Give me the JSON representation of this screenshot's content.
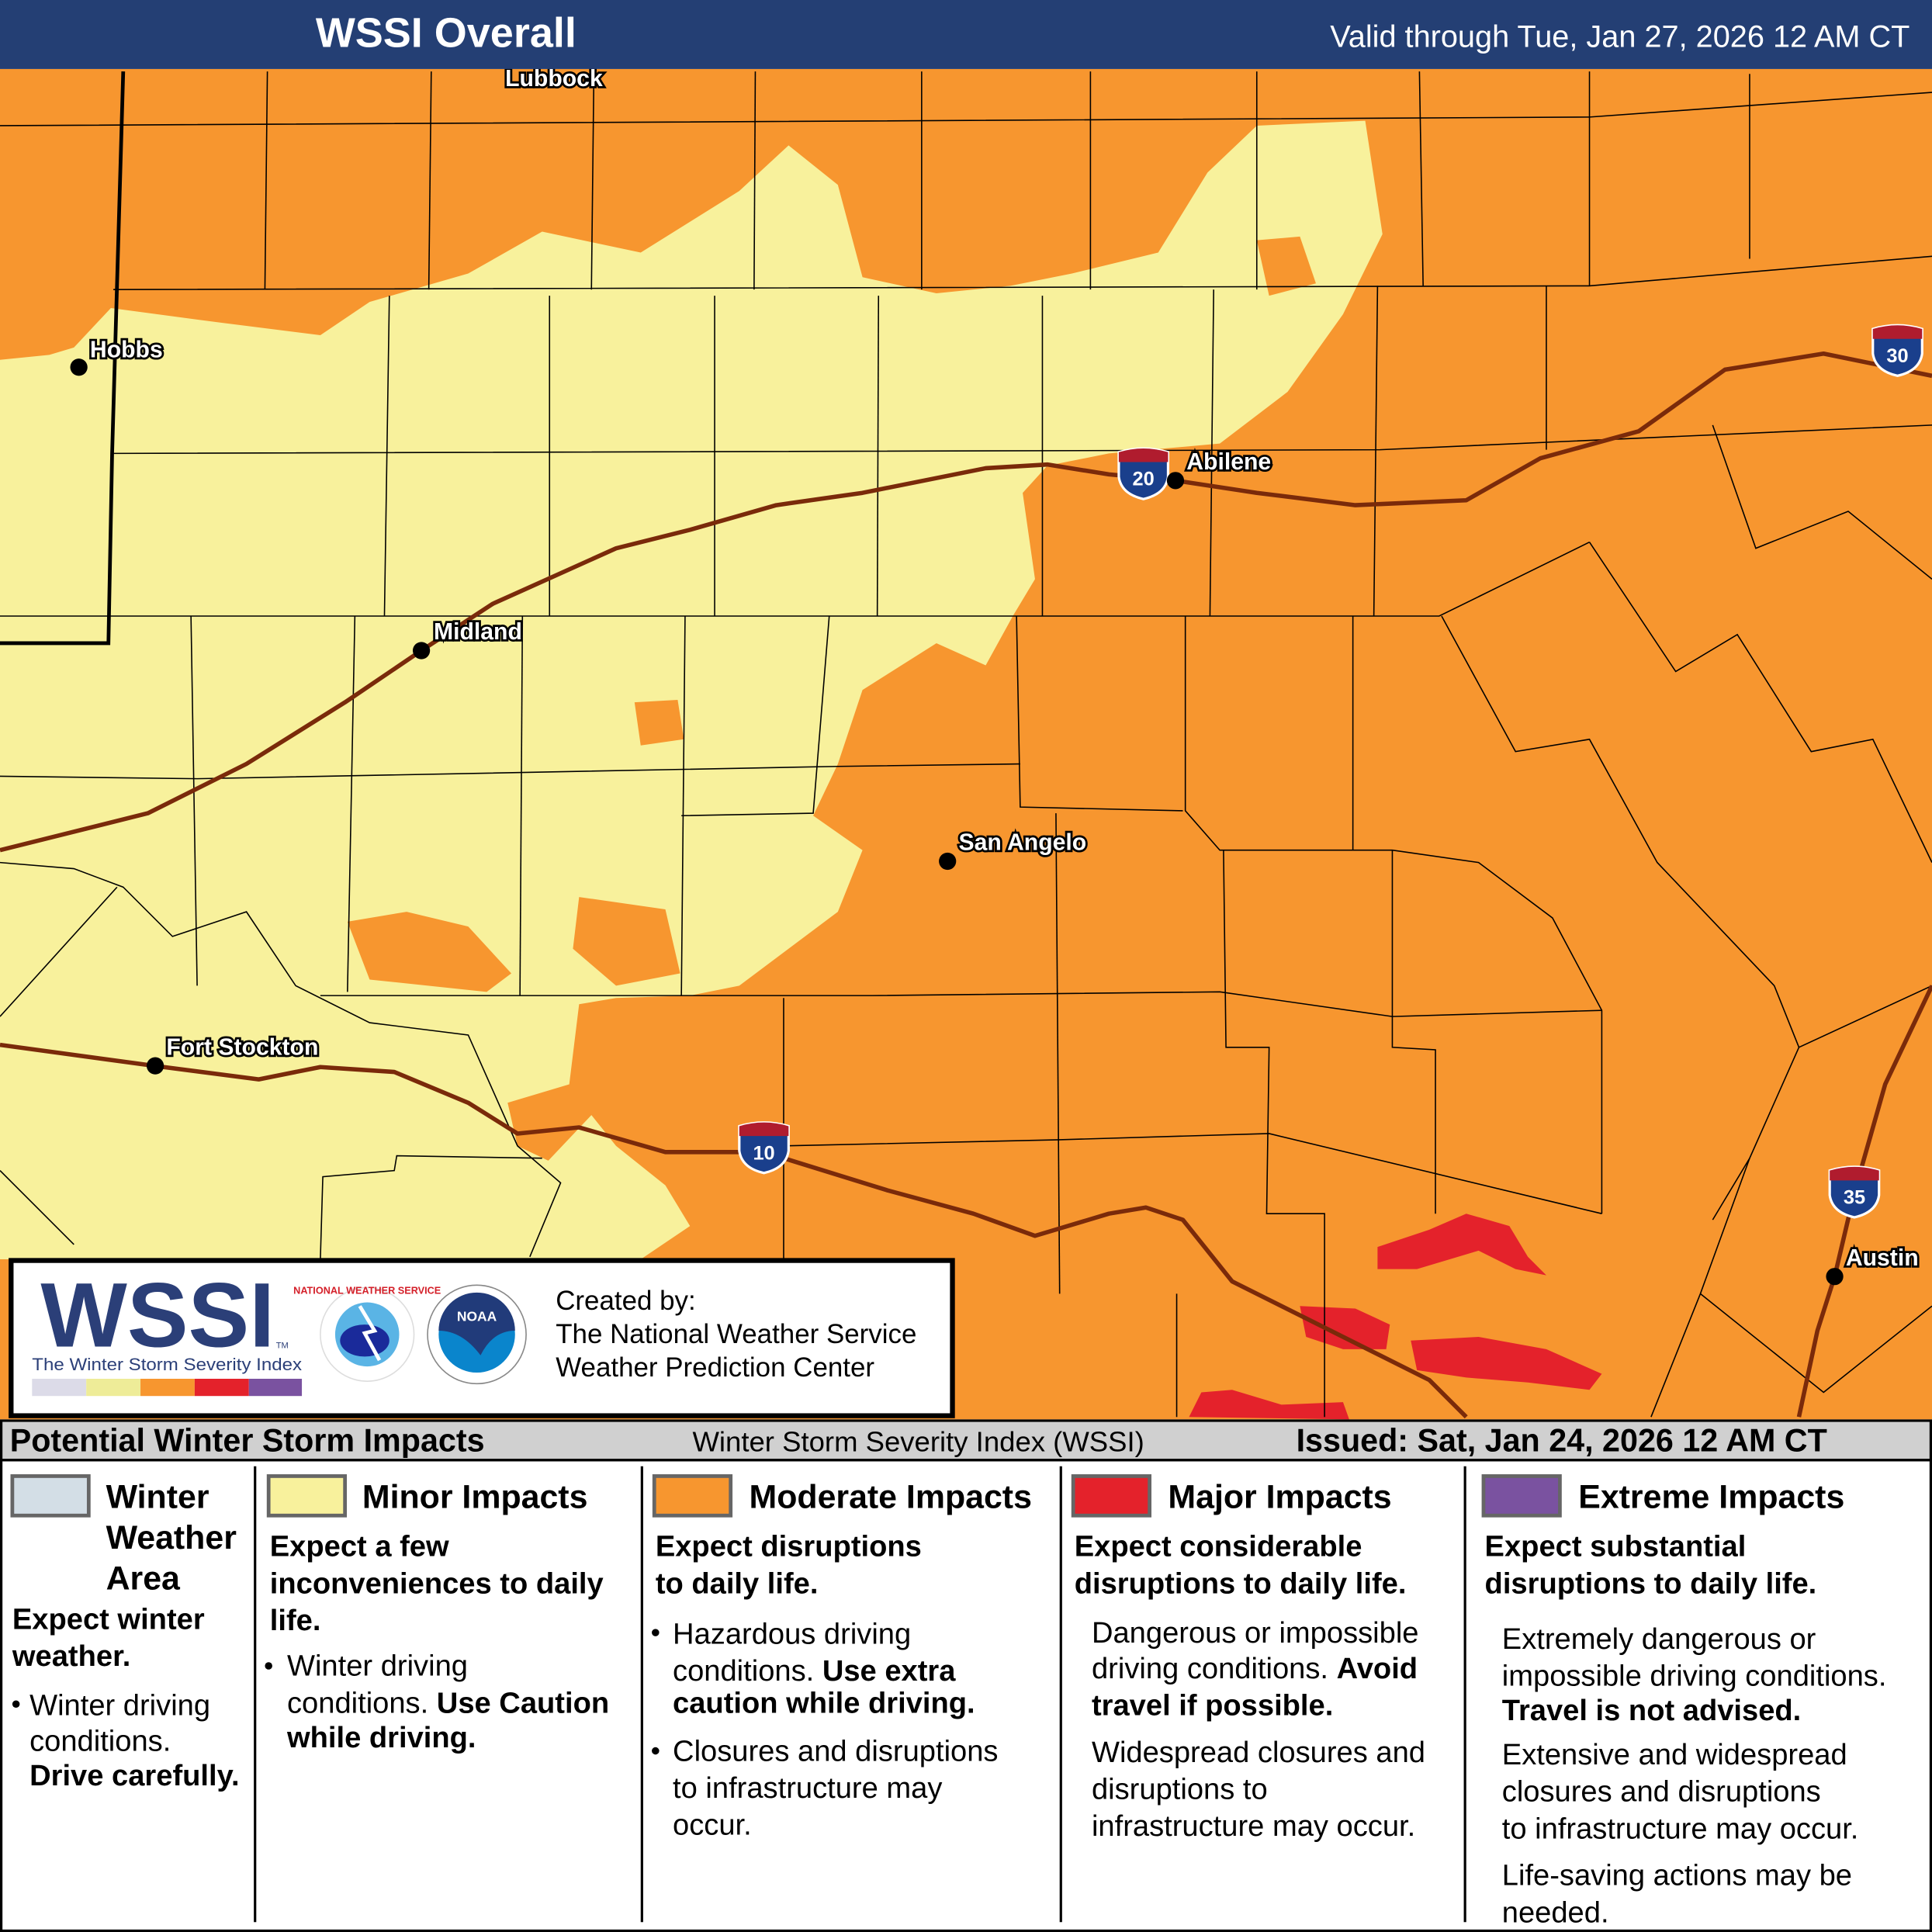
{
  "header": {
    "title": "WSSI Overall",
    "valid": "Valid through Tue, Jan 27, 2026 12 AM CT",
    "bg_color": "#243f74"
  },
  "map": {
    "colors": {
      "minor": "#f8f19c",
      "moderate": "#f7962f",
      "major": "#e4222b",
      "interstate": "#7a2a0a"
    },
    "cities": [
      {
        "name": "Lubbock"
      },
      {
        "name": "Hobbs"
      },
      {
        "name": "Midland"
      },
      {
        "name": "Abilene"
      },
      {
        "name": "San Angelo"
      },
      {
        "name": "Fort Stockton"
      },
      {
        "name": "Austin"
      }
    ],
    "interstates": [
      {
        "number": "20"
      },
      {
        "number": "30"
      },
      {
        "number": "10"
      },
      {
        "number": "35"
      }
    ]
  },
  "logo_panel": {
    "logo_text": "WSSI",
    "logo_tm": "TM",
    "logo_subtitle": "The Winter Storm Severity Index",
    "nws_logo_text": "NATIONAL WEATHER SERVICE",
    "noaa_logo_text": "NOAA",
    "created_by": [
      "Created by:",
      "The National Weather Service",
      "Weather Prediction Center"
    ]
  },
  "legend": {
    "heading": "Potential Winter Storm Impacts",
    "index_name": "Winter Storm Severity Index (WSSI)",
    "issued": "Issued: Sat, Jan 24, 2026 12 AM CT",
    "categories": [
      {
        "color": "#d3dee6",
        "title": [
          "Winter",
          "Weather",
          "Area"
        ],
        "headline": [
          "Expect winter",
          "weather."
        ],
        "body": [
          "Winter driving",
          "conditions.",
          "Drive carefully."
        ]
      },
      {
        "color": "#f8f19c",
        "title": [
          "Minor Impacts"
        ],
        "headline": [
          "Expect a few",
          "inconveniences to daily",
          "life."
        ],
        "body": [
          "Winter driving",
          "conditions.",
          "Use Caution",
          "while driving."
        ]
      },
      {
        "color": "#f7962f",
        "title": [
          "Moderate Impacts"
        ],
        "headline": [
          "Expect disruptions",
          "to daily life."
        ],
        "body": [
          "Hazardous driving",
          "conditions.",
          "Use extra",
          "caution while driving.",
          "Closures and disruptions",
          "to infrastructure may",
          "occur."
        ]
      },
      {
        "color": "#e4222b",
        "title": [
          "Major Impacts"
        ],
        "headline": [
          "Expect considerable",
          "disruptions to daily life."
        ],
        "body": [
          "Dangerous or impossible",
          "driving conditions.",
          "Avoid",
          "travel if possible.",
          "Widespread closures and",
          "disruptions to",
          "infrastructure may occur."
        ]
      },
      {
        "color": "#7a52a0",
        "title": [
          "Extreme Impacts"
        ],
        "headline": [
          "Expect substantial",
          "disruptions to daily life."
        ],
        "body": [
          "Extremely dangerous or",
          "impossible driving conditions.",
          "Travel is not advised.",
          "Extensive and widespread",
          "closures and disruptions",
          "to infrastructure may occur.",
          "Life-saving actions may be",
          "needed."
        ]
      }
    ]
  }
}
